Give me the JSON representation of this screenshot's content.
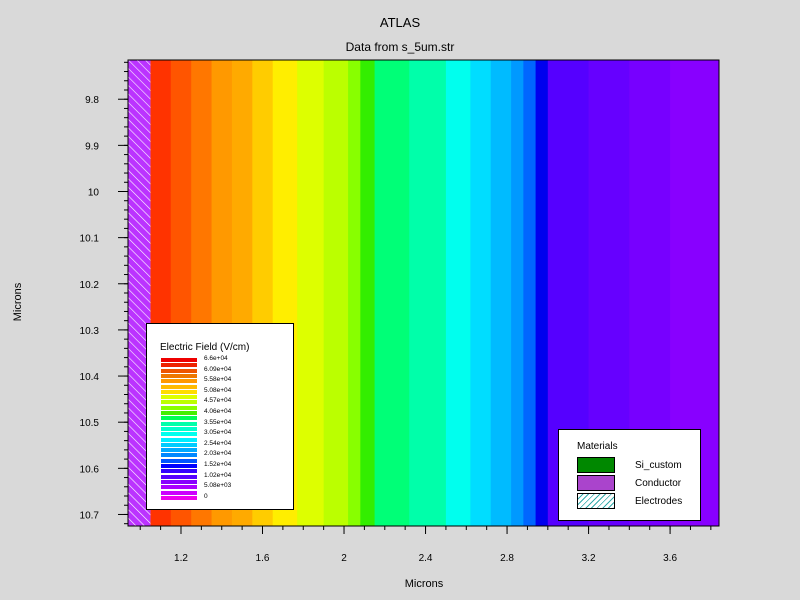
{
  "title": "ATLAS",
  "subtitle": "Data from s_5um.str",
  "chart_data": {
    "type": "heatmap",
    "xlabel": "Microns",
    "ylabel": "Microns",
    "xlim": [
      0.94,
      3.84
    ],
    "ylim": [
      10.725,
      9.715
    ],
    "x_ticks": [
      1.2,
      1.6,
      2,
      2.4,
      2.8,
      3.2,
      3.6
    ],
    "x_tick_labels": [
      "1.2",
      "1.6",
      "2",
      "2.4",
      "2.8",
      "3.2",
      "3.6"
    ],
    "y_ticks": [
      9.8,
      9.9,
      10,
      10.1,
      10.2,
      10.3,
      10.4,
      10.5,
      10.6,
      10.7
    ],
    "y_tick_labels": [
      "9.8",
      "9.9",
      "10",
      "10.1",
      "10.2",
      "10.3",
      "10.4",
      "10.5",
      "10.6",
      "10.7"
    ],
    "electrode_region": {
      "x": [
        0.94,
        1.05
      ],
      "material": "Electrodes / Conductor"
    },
    "field_bands": [
      {
        "x0": 1.05,
        "x1": 1.15,
        "value": 66000,
        "color": "#ff3300"
      },
      {
        "x0": 1.15,
        "x1": 1.25,
        "value": 63000,
        "color": "#ff5500"
      },
      {
        "x0": 1.25,
        "x1": 1.35,
        "value": 60900,
        "color": "#ff7700"
      },
      {
        "x0": 1.35,
        "x1": 1.45,
        "value": 58000,
        "color": "#ff9900"
      },
      {
        "x0": 1.45,
        "x1": 1.55,
        "value": 55800,
        "color": "#ffaa00"
      },
      {
        "x0": 1.55,
        "x1": 1.65,
        "value": 53000,
        "color": "#ffcc00"
      },
      {
        "x0": 1.65,
        "x1": 1.77,
        "value": 50800,
        "color": "#ffee00"
      },
      {
        "x0": 1.77,
        "x1": 1.9,
        "value": 48000,
        "color": "#ddff00"
      },
      {
        "x0": 1.9,
        "x1": 2.02,
        "value": 45700,
        "color": "#bbff00"
      },
      {
        "x0": 2.02,
        "x1": 2.08,
        "value": 43000,
        "color": "#88ff00"
      },
      {
        "x0": 2.08,
        "x1": 2.15,
        "value": 40600,
        "color": "#33ee00"
      },
      {
        "x0": 2.15,
        "x1": 2.32,
        "value": 35500,
        "color": "#00ff77"
      },
      {
        "x0": 2.32,
        "x1": 2.5,
        "value": 30500,
        "color": "#00ffaa"
      },
      {
        "x0": 2.5,
        "x1": 2.62,
        "value": 28000,
        "color": "#00ffee"
      },
      {
        "x0": 2.62,
        "x1": 2.72,
        "value": 25400,
        "color": "#00ddff"
      },
      {
        "x0": 2.72,
        "x1": 2.82,
        "value": 22800,
        "color": "#00bbff"
      },
      {
        "x0": 2.82,
        "x1": 2.88,
        "value": 20300,
        "color": "#0099ff"
      },
      {
        "x0": 2.88,
        "x1": 2.94,
        "value": 17800,
        "color": "#0066ff"
      },
      {
        "x0": 2.94,
        "x1": 3.0,
        "value": 15200,
        "color": "#0000ee"
      },
      {
        "x0": 3.0,
        "x1": 3.2,
        "value": 12700,
        "color": "#5500ff"
      },
      {
        "x0": 3.2,
        "x1": 3.4,
        "value": 10200,
        "color": "#6600ff"
      },
      {
        "x0": 3.4,
        "x1": 3.6,
        "value": 7600,
        "color": "#7700ff"
      },
      {
        "x0": 3.6,
        "x1": 3.84,
        "value": 5080,
        "color": "#8800ff"
      }
    ],
    "field_legend": {
      "title": "Electric Field (V/cm)",
      "entries": [
        {
          "label": "6.6e+04",
          "color": "#ee0000"
        },
        {
          "color": "#ee2200"
        },
        {
          "label": "6.09e+04",
          "color": "#ee5500"
        },
        {
          "color": "#ee7700"
        },
        {
          "label": "5.58e+04",
          "color": "#ff9900"
        },
        {
          "color": "#ffbb00"
        },
        {
          "label": "5.08e+04",
          "color": "#ffdd00"
        },
        {
          "color": "#ddff00"
        },
        {
          "label": "4.57e+04",
          "color": "#bbff00"
        },
        {
          "color": "#88ff00"
        },
        {
          "label": "4.06e+04",
          "color": "#44ee00"
        },
        {
          "color": "#00ff55"
        },
        {
          "label": "3.55e+04",
          "color": "#00ffaa"
        },
        {
          "color": "#00ffcc"
        },
        {
          "label": "3.05e+04",
          "color": "#00ffee"
        },
        {
          "color": "#00eeff"
        },
        {
          "label": "2.54e+04",
          "color": "#00ccff"
        },
        {
          "color": "#00aaff"
        },
        {
          "label": "2.03e+04",
          "color": "#0088ff"
        },
        {
          "color": "#0055ff"
        },
        {
          "label": "1.52e+04",
          "color": "#0000ff"
        },
        {
          "color": "#3300ff"
        },
        {
          "label": "1.02e+04",
          "color": "#5500ff"
        },
        {
          "color": "#8800ff"
        },
        {
          "label": "5.08e+03",
          "color": "#aa00ff"
        },
        {
          "color": "#cc00ff"
        },
        {
          "label": "0",
          "color": "#ee00ee"
        }
      ]
    },
    "materials_legend": {
      "title": "Materials",
      "items": [
        {
          "label": "Si_custom",
          "color": "#008800",
          "pattern": "solid"
        },
        {
          "label": "Conductor",
          "color": "#aa44cc",
          "pattern": "solid"
        },
        {
          "label": "Electrodes",
          "color": "#33aaaa",
          "pattern": "hatch"
        }
      ]
    }
  }
}
